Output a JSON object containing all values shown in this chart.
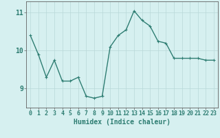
{
  "x": [
    0,
    1,
    2,
    3,
    4,
    5,
    6,
    7,
    8,
    9,
    10,
    11,
    12,
    13,
    14,
    15,
    16,
    17,
    18,
    19,
    20,
    21,
    22,
    23
  ],
  "y": [
    10.4,
    9.9,
    9.3,
    9.75,
    9.2,
    9.2,
    9.3,
    8.8,
    8.75,
    8.8,
    10.1,
    10.4,
    10.55,
    11.05,
    10.8,
    10.65,
    10.25,
    10.2,
    9.8,
    9.8,
    9.8,
    9.8,
    9.75,
    9.75
  ],
  "line_color": "#2e7d72",
  "marker": "+",
  "marker_size": 3,
  "bg_color": "#d6f0f0",
  "grid_color": "#b8d8d8",
  "axis_color": "#606060",
  "xlabel": "Humidex (Indice chaleur)",
  "ylim": [
    8.5,
    11.3
  ],
  "yticks": [
    9,
    10,
    11
  ],
  "xticks": [
    0,
    1,
    2,
    3,
    4,
    5,
    6,
    7,
    8,
    9,
    10,
    11,
    12,
    13,
    14,
    15,
    16,
    17,
    18,
    19,
    20,
    21,
    22,
    23
  ],
  "xlabel_fontsize": 7,
  "tick_fontsize": 6,
  "ytick_fontsize": 7,
  "line_width": 1.0
}
